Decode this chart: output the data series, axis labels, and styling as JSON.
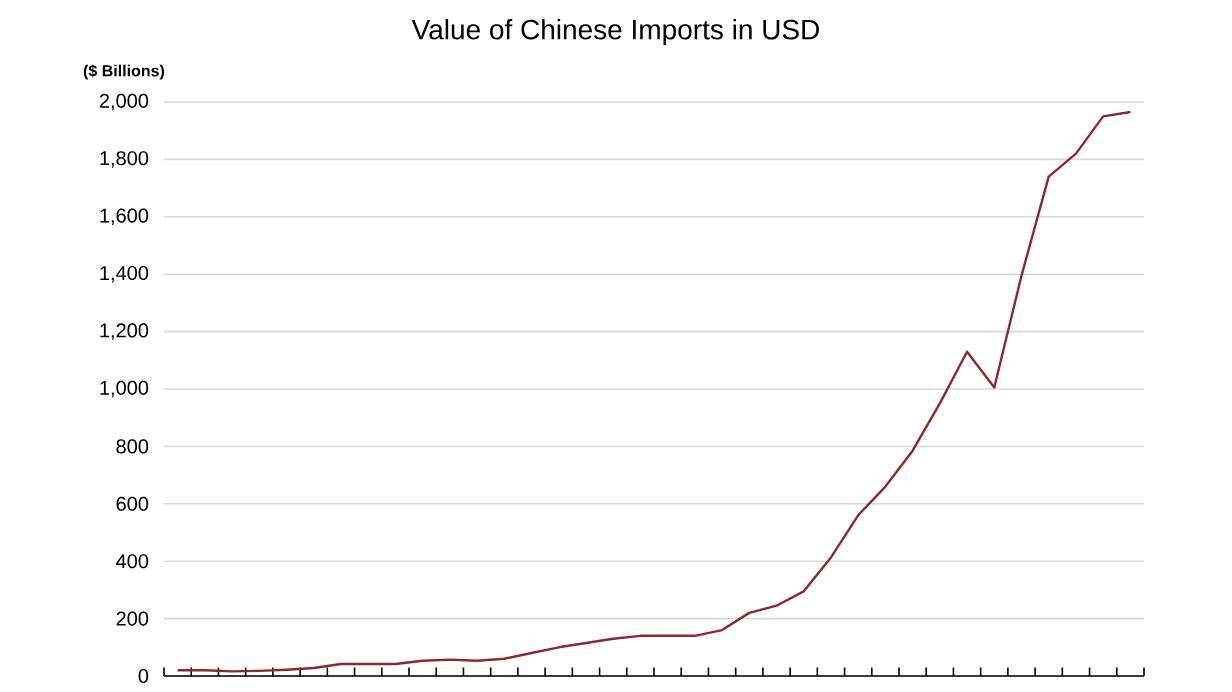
{
  "chart_data": {
    "type": "line",
    "title": "Value of Chinese Imports in USD",
    "ylabel": "($ Billions)",
    "categories": [
      null,
      null,
      null,
      null,
      null,
      null,
      null,
      null,
      null,
      null,
      null,
      null,
      null,
      null,
      null,
      null,
      null,
      null,
      null,
      null,
      null,
      null,
      null,
      null,
      null,
      null,
      null,
      null,
      null,
      null,
      null,
      null,
      null,
      null,
      null,
      null
    ],
    "series": [
      {
        "color": "#8b2a2a",
        "values": [
          20,
          20,
          16,
          18,
          22,
          28,
          42,
          42,
          42,
          53,
          57,
          53,
          60,
          80,
          100,
          115,
          130,
          140,
          140,
          140,
          160,
          220,
          245,
          295,
          413,
          560,
          660,
          785,
          950,
          1130,
          1005,
          1395,
          1740,
          1820,
          1950,
          1965
        ]
      }
    ],
    "ylim": [
      0,
      2000
    ],
    "yticks": [
      0,
      200,
      400,
      600,
      800,
      {
        "value": 1000,
        "label": "1,000"
      },
      {
        "value": 1200,
        "label": "1,200"
      },
      {
        "value": 1400,
        "label": "1,400"
      },
      {
        "value": 1600,
        "label": "1,600"
      },
      {
        "value": 1800,
        "label": "1,800"
      },
      {
        "value": 2000,
        "label": "2,000"
      }
    ],
    "grid": "y",
    "tick_labels": "y",
    "marker": "none",
    "line_style": "solid"
  }
}
